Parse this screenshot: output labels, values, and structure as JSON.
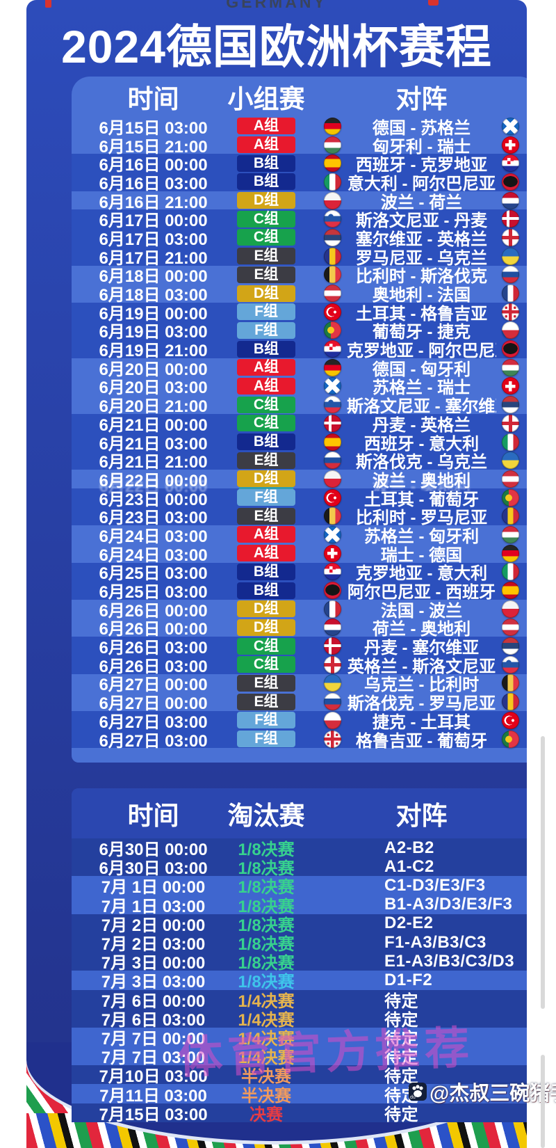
{
  "page": {
    "country_label": "GERMANY",
    "title": "2024德国欧洲杯赛程"
  },
  "group_stage": {
    "headers": {
      "time": "时间",
      "stage": "小组赛",
      "versus": "对阵"
    },
    "rows": [
      {
        "time": "6月15日 03:00",
        "group": "A组",
        "group_key": "A",
        "match": "德国 - 苏格兰",
        "home_flag": "germany",
        "away_flag": "scotland",
        "shade": "light"
      },
      {
        "time": "6月15日 21:00",
        "group": "A组",
        "group_key": "A",
        "match": "匈牙利 - 瑞士",
        "home_flag": "hungary",
        "away_flag": "switzerland",
        "shade": "light"
      },
      {
        "time": "6月16日 00:00",
        "group": "B组",
        "group_key": "B",
        "match": "西班牙 - 克罗地亚",
        "home_flag": "spain",
        "away_flag": "croatia",
        "shade": "dark"
      },
      {
        "time": "6月16日 03:00",
        "group": "B组",
        "group_key": "B",
        "match": "意大利 - 阿尔巴尼亚",
        "home_flag": "italy",
        "away_flag": "albania",
        "shade": "dark"
      },
      {
        "time": "6月16日 21:00",
        "group": "D组",
        "group_key": "D",
        "match": "波兰 - 荷兰",
        "home_flag": "poland",
        "away_flag": "netherlands",
        "shade": "light"
      },
      {
        "time": "6月17日 00:00",
        "group": "C组",
        "group_key": "C",
        "match": "斯洛文尼亚 - 丹麦",
        "home_flag": "slovenia",
        "away_flag": "denmark",
        "shade": "dark"
      },
      {
        "time": "6月17日 03:00",
        "group": "C组",
        "group_key": "C",
        "match": "塞尔维亚 - 英格兰",
        "home_flag": "serbia",
        "away_flag": "england",
        "shade": "dark"
      },
      {
        "time": "6月17日 21:00",
        "group": "E组",
        "group_key": "E",
        "match": "罗马尼亚 - 乌克兰",
        "home_flag": "romania",
        "away_flag": "ukraine",
        "shade": "dark"
      },
      {
        "time": "6月18日 00:00",
        "group": "E组",
        "group_key": "E",
        "match": "比利时 - 斯洛伐克",
        "home_flag": "belgium",
        "away_flag": "slovakia",
        "shade": "light"
      },
      {
        "time": "6月18日 03:00",
        "group": "D组",
        "group_key": "D",
        "match": "奥地利 - 法国",
        "home_flag": "austria",
        "away_flag": "france",
        "shade": "light"
      },
      {
        "time": "6月19日 00:00",
        "group": "F组",
        "group_key": "F",
        "match": "土耳其 - 格鲁吉亚",
        "home_flag": "turkey",
        "away_flag": "georgia",
        "shade": "dark"
      },
      {
        "time": "6月19日 03:00",
        "group": "F组",
        "group_key": "F",
        "match": "葡萄牙 - 捷克",
        "home_flag": "portugal",
        "away_flag": "czechia",
        "shade": "dark"
      },
      {
        "time": "6月19日 21:00",
        "group": "B组",
        "group_key": "B",
        "match": "克罗地亚 - 阿尔巴尼亚",
        "home_flag": "croatia",
        "away_flag": "albania",
        "shade": "dark"
      },
      {
        "time": "6月20日 00:00",
        "group": "A组",
        "group_key": "A",
        "match": "德国 - 匈牙利",
        "home_flag": "germany",
        "away_flag": "hungary",
        "shade": "light"
      },
      {
        "time": "6月20日 03:00",
        "group": "A组",
        "group_key": "A",
        "match": "苏格兰 - 瑞士",
        "home_flag": "scotland",
        "away_flag": "switzerland",
        "shade": "light"
      },
      {
        "time": "6月20日 21:00",
        "group": "C组",
        "group_key": "C",
        "match": "斯洛文尼亚 - 塞尔维亚",
        "home_flag": "slovenia",
        "away_flag": "serbia",
        "shade": "light"
      },
      {
        "time": "6月21日 00:00",
        "group": "C组",
        "group_key": "C",
        "match": "丹麦 - 英格兰",
        "home_flag": "denmark",
        "away_flag": "england",
        "shade": "dark"
      },
      {
        "time": "6月21日 03:00",
        "group": "B组",
        "group_key": "B",
        "match": "西班牙 - 意大利",
        "home_flag": "spain",
        "away_flag": "italy",
        "shade": "dark"
      },
      {
        "time": "6月21日 21:00",
        "group": "E组",
        "group_key": "E",
        "match": "斯洛伐克 - 乌克兰",
        "home_flag": "slovakia",
        "away_flag": "ukraine",
        "shade": "dark"
      },
      {
        "time": "6月22日 00:00",
        "group": "D组",
        "group_key": "D",
        "match": "波兰 - 奥地利",
        "home_flag": "poland",
        "away_flag": "austria",
        "shade": "light",
        "glitch": true
      },
      {
        "time": "6月23日 00:00",
        "group": "F组",
        "group_key": "F",
        "match": "土耳其 - 葡萄牙",
        "home_flag": "turkey",
        "away_flag": "portugal",
        "shade": "dark"
      },
      {
        "time": "6月23日 03:00",
        "group": "E组",
        "group_key": "E",
        "match": "比利时 - 罗马尼亚",
        "home_flag": "belgium",
        "away_flag": "romania",
        "shade": "dark"
      },
      {
        "time": "6月24日 03:00",
        "group": "A组",
        "group_key": "A",
        "match": "苏格兰 - 匈牙利",
        "home_flag": "scotland",
        "away_flag": "hungary",
        "shade": "light"
      },
      {
        "time": "6月24日 03:00",
        "group": "A组",
        "group_key": "A",
        "match": "瑞士 - 德国",
        "home_flag": "switzerland",
        "away_flag": "germany",
        "shade": "light"
      },
      {
        "time": "6月25日 03:00",
        "group": "B组",
        "group_key": "B",
        "match": "克罗地亚 - 意大利",
        "home_flag": "croatia",
        "away_flag": "italy",
        "shade": "dark"
      },
      {
        "time": "6月25日 03:00",
        "group": "B组",
        "group_key": "B",
        "match": "阿尔巴尼亚 - 西班牙",
        "home_flag": "albania",
        "away_flag": "spain",
        "shade": "dark"
      },
      {
        "time": "6月26日 00:00",
        "group": "D组",
        "group_key": "D",
        "match": "法国 - 波兰",
        "home_flag": "france",
        "away_flag": "poland",
        "shade": "light"
      },
      {
        "time": "6月26日 00:00",
        "group": "D组",
        "group_key": "D",
        "match": "荷兰 - 奥地利",
        "home_flag": "netherlands",
        "away_flag": "austria",
        "shade": "light"
      },
      {
        "time": "6月26日 03:00",
        "group": "C组",
        "group_key": "C",
        "match": "丹麦 - 塞尔维亚",
        "home_flag": "denmark",
        "away_flag": "serbia",
        "shade": "dark"
      },
      {
        "time": "6月26日 03:00",
        "group": "C组",
        "group_key": "C",
        "match": "英格兰 - 斯洛文尼亚",
        "home_flag": "england",
        "away_flag": "slovenia",
        "shade": "dark"
      },
      {
        "time": "6月27日 00:00",
        "group": "E组",
        "group_key": "E",
        "match": "乌克兰 - 比利时",
        "home_flag": "ukraine",
        "away_flag": "belgium",
        "shade": "light"
      },
      {
        "time": "6月27日 00:00",
        "group": "E组",
        "group_key": "E",
        "match": "斯洛伐克 - 罗马尼亚",
        "home_flag": "slovakia",
        "away_flag": "romania",
        "shade": "light"
      },
      {
        "time": "6月27日 03:00",
        "group": "F组",
        "group_key": "F",
        "match": "捷克 - 土耳其",
        "home_flag": "czechia",
        "away_flag": "turkey",
        "shade": "dark"
      },
      {
        "time": "6月27日 03:00",
        "group": "F组",
        "group_key": "F",
        "match": "格鲁吉亚 - 葡萄牙",
        "home_flag": "georgia",
        "away_flag": "portugal",
        "shade": "dark"
      }
    ]
  },
  "knockout": {
    "headers": {
      "time": "时间",
      "stage": "淘汰赛",
      "versus": "对阵"
    },
    "rows": [
      {
        "time": "6月30日 00:00",
        "stage": "1/8决赛",
        "stage_color": "r16",
        "matchup": "A2-B2",
        "shade": "dark"
      },
      {
        "time": "6月30日 03:00",
        "stage": "1/8决赛",
        "stage_color": "r16",
        "matchup": "A1-C2",
        "shade": "dark"
      },
      {
        "time": "7月 1日 00:00",
        "stage": "1/8决赛",
        "stage_color": "r16",
        "matchup": "C1-D3/E3/F3",
        "shade": "light"
      },
      {
        "time": "7月 1日 03:00",
        "stage": "1/8决赛",
        "stage_color": "r16",
        "matchup": "B1-A3/D3/E3/F3",
        "shade": "light"
      },
      {
        "time": "7月 2日 00:00",
        "stage": "1/8决赛",
        "stage_color": "r16",
        "matchup": "D2-E2",
        "shade": "dark"
      },
      {
        "time": "7月 2日 03:00",
        "stage": "1/8决赛",
        "stage_color": "r16",
        "matchup": "F1-A3/B3/C3",
        "shade": "dark"
      },
      {
        "time": "7月 3日 00:00",
        "stage": "1/8决赛",
        "stage_color": "r16",
        "matchup": "E1-A3/B3/C3/D3",
        "shade": "dark"
      },
      {
        "time": "7月 3日 03:00",
        "stage": "1/8决赛",
        "stage_color": "r16_last",
        "matchup": "D1-F2",
        "shade": "light"
      },
      {
        "time": "7月 6日 00:00",
        "stage": "1/4决赛",
        "stage_color": "qf",
        "matchup": "待定",
        "shade": "dark"
      },
      {
        "time": "7月 6日 03:00",
        "stage": "1/4决赛",
        "stage_color": "qf",
        "matchup": "待定",
        "shade": "dark"
      },
      {
        "time": "7月 7日 00:00",
        "stage": "1/4决赛",
        "stage_color": "qf",
        "matchup": "待定",
        "shade": "light"
      },
      {
        "time": "7月 7日 03:00",
        "stage": "1/4决赛",
        "stage_color": "qf",
        "matchup": "待定",
        "shade": "light"
      },
      {
        "time": "7月10日 03:00",
        "stage": "半决赛",
        "stage_color": "sf",
        "matchup": "待定",
        "shade": "dark"
      },
      {
        "time": "7月11日 03:00",
        "stage": "半决赛",
        "stage_color": "sf",
        "matchup": "待定",
        "shade": "light"
      },
      {
        "time": "7月15日 03:00",
        "stage": "决赛",
        "stage_color": "final",
        "matchup": "待定",
        "shade": "dark"
      }
    ]
  },
  "watermarks": {
    "center_text": "体育官方推荐",
    "credit_text": "@杰叔三碗猪手面",
    "credit_icon": "baidu-paw-icon",
    "paw_label": "du"
  },
  "colors": {
    "theme": {
      "poster-top": "#2d4cbb",
      "poster-bottom": "#223189",
      "panel": "#4a71d5",
      "row-light": "#4a71d5",
      "row-dark": "#2c50bd",
      "k-panel": "#3156c4",
      "k-row-light": "#3f66cf",
      "k-row-dark": "#24409e",
      "k-header": "#2b47b0",
      "arch": "#20308d",
      "watermark": "#d94ec6"
    },
    "group_badges": {
      "A": "#e8192d",
      "B": "#13298f",
      "C": "#17a24c",
      "D": "#d2a517",
      "E": "#3c3c44",
      "F": "#64a6d9"
    },
    "stage_text": {
      "r16": "#37d18e",
      "r16_last": "#3fc4ea",
      "qf": "#e5b44e",
      "sf": "#f09a5e",
      "final": "#e63c44"
    }
  }
}
